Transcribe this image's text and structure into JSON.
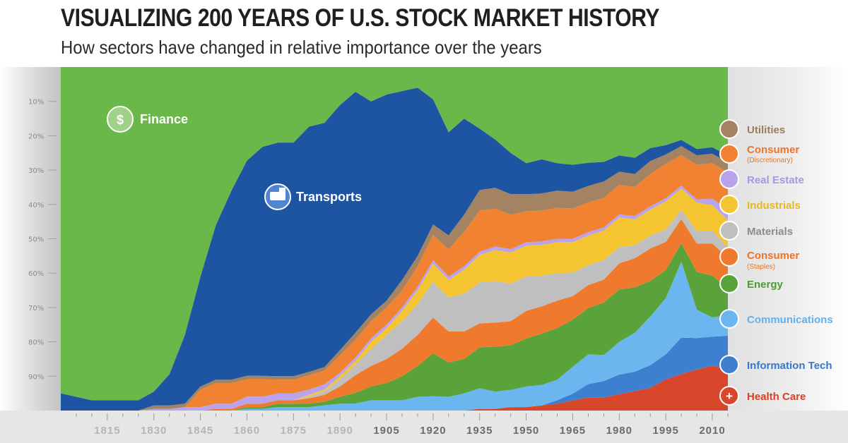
{
  "title": "VISUALIZING 200 YEARS OF U.S. STOCK MARKET HISTORY",
  "subtitle": "How sectors have changed in relative importance over the years",
  "chart_data": {
    "type": "area",
    "stacking": "percent",
    "x": [
      1800,
      1805,
      1810,
      1815,
      1820,
      1825,
      1830,
      1835,
      1840,
      1845,
      1850,
      1855,
      1860,
      1865,
      1870,
      1875,
      1880,
      1885,
      1890,
      1895,
      1900,
      1905,
      1910,
      1915,
      1920,
      1925,
      1930,
      1935,
      1940,
      1945,
      1950,
      1955,
      1960,
      1965,
      1970,
      1975,
      1980,
      1985,
      1990,
      1995,
      2000,
      2005,
      2010,
      2015
    ],
    "xlim": [
      1800,
      2015
    ],
    "ylim": [
      0,
      100
    ],
    "x_tick_labels": [
      "1815",
      "1830",
      "1845",
      "1860",
      "1875",
      "1890",
      "1905",
      "1920",
      "1935",
      "1950",
      "1965",
      "1980",
      "1995",
      "2010"
    ],
    "y_tick_labels": [
      "10%",
      "20%",
      "30%",
      "40%",
      "50%",
      "60%",
      "70%",
      "80%",
      "90%"
    ],
    "legend_position": "right",
    "series": [
      {
        "name": "Health Care",
        "color": "#d8472b",
        "values": [
          0,
          0,
          0,
          0,
          0,
          0,
          0,
          0,
          0,
          0,
          0,
          0,
          0,
          0,
          0,
          0,
          0,
          0,
          0,
          0,
          0,
          0,
          0,
          0,
          0,
          0,
          0,
          0.5,
          0.5,
          1,
          1,
          1.5,
          2,
          3,
          4,
          4,
          5,
          6,
          7,
          10,
          12,
          13,
          14,
          12
        ]
      },
      {
        "name": "Information Tech",
        "color": "#3e7fd0",
        "values": [
          0,
          0,
          0,
          0,
          0,
          0,
          0,
          0,
          0,
          0,
          0,
          0,
          0,
          0,
          0,
          0,
          0,
          0,
          0,
          0,
          0,
          0,
          0,
          0,
          0,
          0,
          0,
          0,
          0,
          0,
          0,
          0,
          1,
          2,
          4,
          5,
          6,
          6,
          7,
          8,
          12,
          10,
          9,
          10
        ]
      },
      {
        "name": "Communications",
        "color": "#6bb6ef",
        "values": [
          0,
          0,
          0,
          0,
          0,
          0,
          0,
          0,
          0,
          0,
          0,
          0,
          0.5,
          0.5,
          1,
          1,
          1,
          1.5,
          2,
          2,
          3,
          3,
          3,
          4,
          4,
          4,
          5,
          6,
          5,
          5,
          6,
          6,
          6,
          8,
          9,
          8,
          10,
          12,
          15,
          18,
          25,
          9,
          6,
          6
        ]
      },
      {
        "name": "Energy",
        "color": "#5aa33a",
        "values": [
          0,
          0,
          0,
          0,
          0,
          0,
          0,
          0,
          0,
          0,
          0,
          0,
          0.5,
          0.5,
          1,
          1,
          1,
          1,
          2,
          3,
          4,
          5,
          7,
          9,
          12,
          10,
          10,
          12,
          13,
          13,
          14,
          15,
          15,
          14,
          14,
          16,
          16,
          14,
          11,
          9,
          6,
          12,
          13,
          8
        ]
      },
      {
        "name": "Consumer (Staples)",
        "color": "#ef7a2e",
        "values": [
          0,
          0,
          0,
          0,
          0,
          0,
          0,
          0,
          0,
          0,
          0.5,
          0.5,
          1,
          1,
          1,
          1,
          1.5,
          2,
          3,
          5,
          6,
          7,
          8,
          9,
          10,
          9,
          8,
          7,
          7,
          7,
          8,
          8,
          8,
          7,
          7,
          7,
          8,
          9,
          10,
          9,
          8,
          9,
          10,
          9
        ]
      },
      {
        "name": "Materials",
        "color": "#bfbfbf",
        "values": [
          0,
          0,
          0,
          0,
          0,
          0,
          0,
          0,
          0,
          0,
          0,
          0,
          0,
          0,
          0,
          0,
          0.5,
          1,
          2,
          3,
          5,
          7,
          8,
          9,
          10,
          10,
          11,
          12,
          12,
          11,
          10,
          9,
          8,
          7,
          6,
          6,
          5,
          4,
          4,
          4,
          3,
          4,
          4,
          3
        ]
      },
      {
        "name": "Industrials",
        "color": "#f4c531",
        "values": [
          0,
          0,
          0,
          0,
          0,
          0,
          0,
          0,
          0,
          0,
          0,
          0,
          0,
          0,
          0,
          0,
          0.5,
          0.5,
          1,
          1,
          2,
          2,
          3,
          4,
          5,
          5,
          7,
          8,
          9,
          9,
          9,
          9,
          9,
          9,
          9,
          9,
          9,
          8,
          8,
          9,
          7,
          9,
          8,
          8
        ]
      },
      {
        "name": "Real Estate",
        "color": "#b9a3ec",
        "values": [
          0,
          0,
          0,
          0,
          0,
          0,
          0.5,
          0.5,
          1,
          1,
          1.5,
          1.5,
          2,
          2,
          2,
          2,
          1.5,
          1.5,
          1,
          1,
          1,
          1,
          1,
          1,
          1,
          1,
          1,
          1,
          1,
          1,
          1,
          1,
          1,
          1,
          1,
          1,
          1,
          1,
          1,
          1,
          1,
          1,
          2,
          3
        ]
      },
      {
        "name": "Consumer (Discretionary)",
        "color": "#f08232",
        "values": [
          0,
          0,
          0,
          0,
          0,
          0,
          0,
          0,
          0,
          5,
          6,
          6,
          5,
          5,
          4,
          4,
          4,
          4,
          5,
          5,
          5,
          5,
          5,
          6,
          7,
          8,
          10,
          12,
          11,
          10,
          9,
          9,
          9,
          9,
          9,
          9,
          9,
          9,
          10,
          11,
          10,
          11,
          11,
          11
        ]
      },
      {
        "name": "Utilities",
        "color": "#a38361",
        "values": [
          0,
          0,
          0,
          0,
          0,
          0,
          1,
          1,
          1,
          1,
          1,
          1,
          1,
          1,
          1,
          1,
          1,
          1,
          1.5,
          2,
          2,
          2,
          3,
          3,
          3,
          4,
          5,
          6,
          6,
          6,
          5,
          5,
          5,
          5,
          5,
          5,
          4,
          4,
          4,
          3,
          3,
          3,
          3,
          3
        ]
      },
      {
        "name": "Transports",
        "color": "#1d55a3",
        "values": [
          5,
          4,
          3,
          3,
          3,
          3,
          4,
          9,
          20,
          32,
          45,
          55,
          62,
          66,
          68,
          68,
          70,
          70,
          71,
          68,
          62,
          60,
          55,
          49,
          35,
          30,
          28,
          18,
          14,
          12,
          9,
          10,
          8,
          8,
          7,
          6,
          5,
          5,
          4,
          3,
          2,
          2,
          2,
          2
        ]
      },
      {
        "name": "Finance",
        "color": "#6ab74a",
        "values": [
          95,
          96,
          97,
          97,
          97,
          97,
          94,
          89,
          78,
          61,
          46,
          36,
          27,
          23,
          22,
          22,
          17,
          16,
          11,
          7,
          10,
          8,
          7,
          6,
          9,
          19,
          15,
          18,
          21,
          25,
          28,
          27,
          28,
          29,
          29,
          29,
          27,
          28,
          25,
          25,
          24,
          26,
          25,
          26
        ]
      }
    ]
  },
  "legend": {
    "utilities": "Utilities",
    "consumer_disc": "Consumer",
    "consumer_disc_sub": "(Discretionary)",
    "real_estate": "Real Estate",
    "industrials": "Industrials",
    "materials": "Materials",
    "consumer_staples": "Consumer",
    "consumer_staples_sub": "(Staples)",
    "energy": "Energy",
    "communications": "Communications",
    "information_tech": "Information Tech",
    "health_care": "Health Care"
  },
  "annotations": {
    "finance": "Finance",
    "transports": "Transports"
  },
  "icons": {
    "finance": "money-bag-icon",
    "transports": "locomotive-icon",
    "utilities": "faucet-icon",
    "consumer_disc": "factory-icon",
    "real_estate": "bank-building-icon",
    "industrials": "factory-icon",
    "materials": "diamond-icon",
    "consumer_staples": "shopping-cart-icon",
    "energy": "lightning-icon",
    "communications": "satellite-icon",
    "information_tech": "chip-icon",
    "health_care": "medical-cross-icon"
  }
}
